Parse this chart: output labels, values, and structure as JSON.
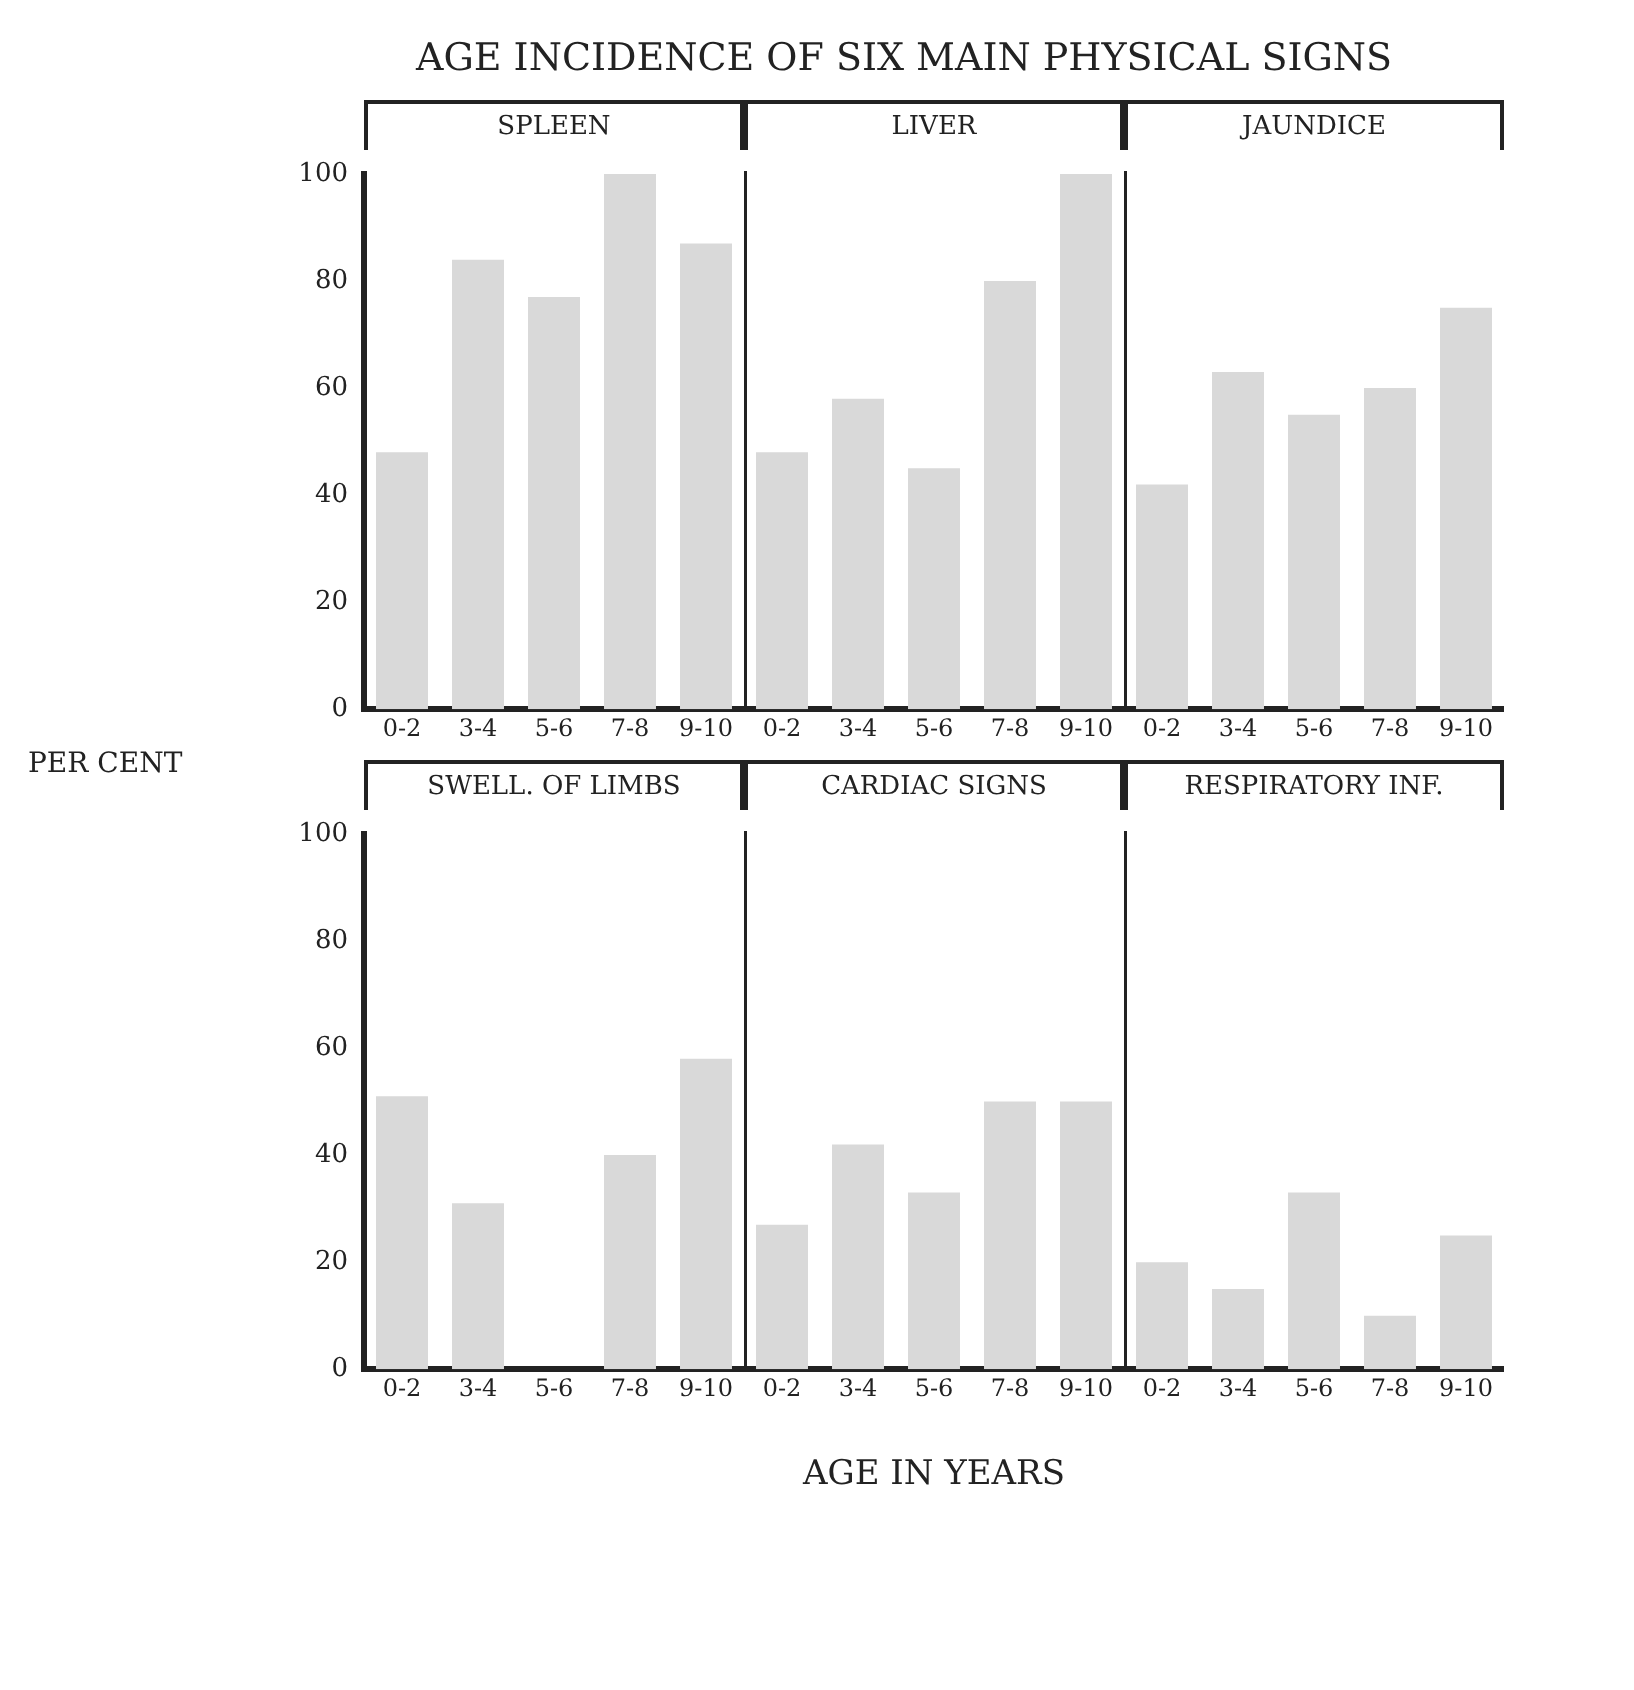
{
  "chart_data": [
    {
      "type": "bar",
      "title": "SPLEEN",
      "annotations": [
        "AGE INCIDENCE OF SIX MAIN PHYSICAL SIGNS"
      ],
      "ylabel": "PER CENT",
      "categories": [
        "0-2",
        "3-4",
        "5-6",
        "7-8",
        "9-10"
      ],
      "values": [
        48,
        84,
        77,
        100,
        87
      ],
      "color": "#d9d9d9",
      "ylim": [
        0,
        100
      ],
      "yticks": [
        0,
        20,
        40,
        60,
        80,
        100
      ],
      "grid": false,
      "legend": false
    },
    {
      "type": "bar",
      "title": "LIVER",
      "categories": [
        "0-2",
        "3-4",
        "5-6",
        "7-8",
        "9-10"
      ],
      "values": [
        48,
        58,
        45,
        80,
        100
      ],
      "color": "#d9d9d9",
      "ylim": [
        0,
        100
      ],
      "yticks": [
        0,
        20,
        40,
        60,
        80,
        100
      ],
      "grid": false,
      "legend": false,
      "tick_labels": "x"
    },
    {
      "type": "bar",
      "title": "JAUNDICE",
      "categories": [
        "0-2",
        "3-4",
        "5-6",
        "7-8",
        "9-10"
      ],
      "values": [
        42,
        63,
        55,
        60,
        75
      ],
      "color": "#d9d9d9",
      "ylim": [
        0,
        100
      ],
      "yticks": [
        0,
        20,
        40,
        60,
        80,
        100
      ],
      "grid": false,
      "legend": false,
      "tick_labels": "x"
    },
    {
      "type": "bar",
      "title": "SWELL. OF LIMBS",
      "categories": [
        "0-2",
        "3-4",
        "5-6",
        "7-8",
        "9-10"
      ],
      "values": [
        51,
        31,
        0,
        40,
        58
      ],
      "color": "#d9d9d9",
      "ylim": [
        0,
        100
      ],
      "yticks": [
        0,
        20,
        40,
        60,
        80,
        100
      ],
      "grid": false,
      "legend": false
    },
    {
      "type": "bar",
      "title": "CARDIAC SIGNS",
      "xlabel": "AGE IN YEARS",
      "categories": [
        "0-2",
        "3-4",
        "5-6",
        "7-8",
        "9-10"
      ],
      "values": [
        27,
        42,
        33,
        50,
        50
      ],
      "color": "#d9d9d9",
      "ylim": [
        0,
        100
      ],
      "yticks": [
        0,
        20,
        40,
        60,
        80,
        100
      ],
      "grid": false,
      "legend": false,
      "tick_labels": "x"
    },
    {
      "type": "bar",
      "title": "RESPIRATORY INF.",
      "categories": [
        "0-2",
        "3-4",
        "5-6",
        "7-8",
        "9-10"
      ],
      "values": [
        20,
        15,
        33,
        10,
        25
      ],
      "color": "#d9d9d9",
      "ylim": [
        0,
        100
      ],
      "yticks": [
        0,
        20,
        40,
        60,
        80,
        100
      ],
      "grid": false,
      "legend": false,
      "tick_labels": "x"
    }
  ]
}
